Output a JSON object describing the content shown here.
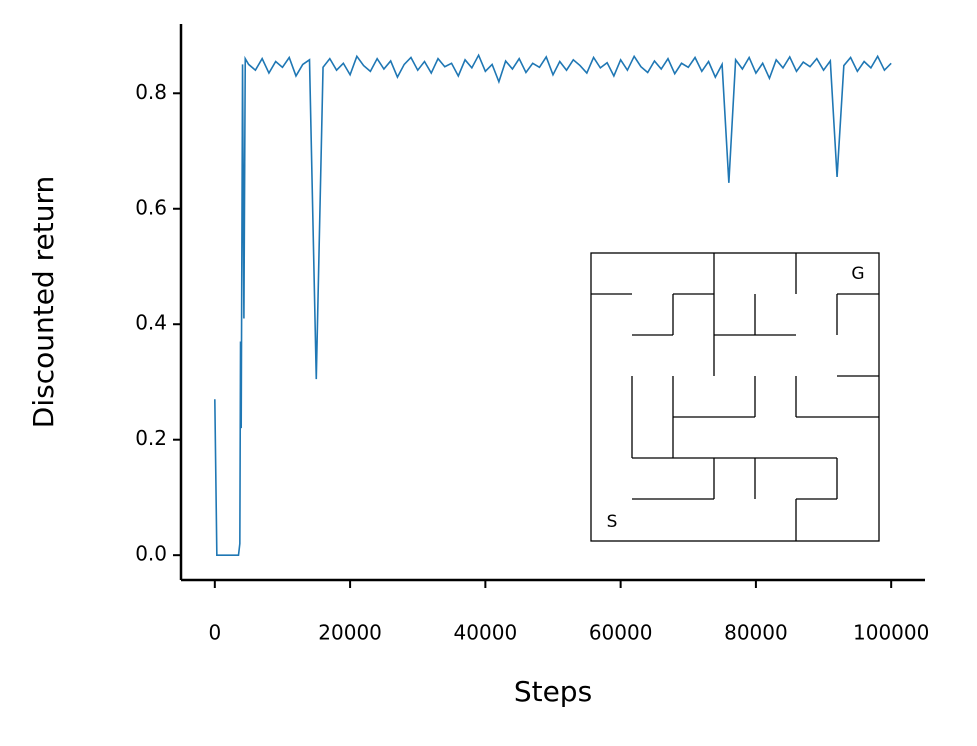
{
  "chart_data": {
    "type": "line",
    "xlabel": "Steps",
    "ylabel": "Discounted return",
    "color": "#1f77b4",
    "xlim": [
      -5000,
      105000
    ],
    "ylim": [
      -0.043,
      0.92
    ],
    "xticks": [
      0,
      20000,
      40000,
      60000,
      80000,
      100000
    ],
    "yticks": [
      {
        "value": 0,
        "label": "0.0"
      },
      0.2,
      0.4,
      0.6,
      0.8
    ],
    "inset_labels": {
      "start": "S",
      "goal": "G"
    },
    "x": [
      0,
      300,
      3500,
      3700,
      3800,
      3900,
      4100,
      4300,
      4500,
      5000,
      6000,
      7000,
      8000,
      9000,
      10000,
      11000,
      12000,
      13000,
      14000,
      15000,
      16000,
      17000,
      18000,
      19000,
      20000,
      21000,
      22000,
      23000,
      24000,
      25000,
      26000,
      27000,
      28000,
      29000,
      30000,
      31000,
      32000,
      33000,
      34000,
      35000,
      36000,
      37000,
      38000,
      39000,
      40000,
      41000,
      42000,
      43000,
      44000,
      45000,
      46000,
      47000,
      48000,
      49000,
      50000,
      51000,
      52000,
      53000,
      54000,
      55000,
      56000,
      57000,
      58000,
      59000,
      60000,
      61000,
      62000,
      63000,
      64000,
      65000,
      66000,
      67000,
      68000,
      69000,
      70000,
      71000,
      72000,
      73000,
      74000,
      75000,
      76000,
      77000,
      78000,
      79000,
      80000,
      81000,
      82000,
      83000,
      84000,
      85000,
      86000,
      87000,
      88000,
      89000,
      90000,
      91000,
      92000,
      93000,
      94000,
      95000,
      96000,
      97000,
      98000,
      99000,
      100000
    ],
    "values": [
      0.27,
      0,
      0,
      0.02,
      0.37,
      0.22,
      0.85,
      0.41,
      0.86,
      0.85,
      0.84,
      0.86,
      0.835,
      0.855,
      0.845,
      0.862,
      0.83,
      0.85,
      0.858,
      0.305,
      0.845,
      0.86,
      0.84,
      0.852,
      0.832,
      0.864,
      0.848,
      0.838,
      0.86,
      0.842,
      0.856,
      0.828,
      0.85,
      0.862,
      0.84,
      0.855,
      0.835,
      0.86,
      0.846,
      0.852,
      0.83,
      0.858,
      0.844,
      0.866,
      0.838,
      0.85,
      0.82,
      0.856,
      0.842,
      0.86,
      0.836,
      0.852,
      0.845,
      0.863,
      0.832,
      0.855,
      0.84,
      0.858,
      0.848,
      0.835,
      0.862,
      0.844,
      0.853,
      0.83,
      0.858,
      0.84,
      0.864,
      0.846,
      0.836,
      0.856,
      0.842,
      0.86,
      0.834,
      0.852,
      0.845,
      0.862,
      0.838,
      0.855,
      0.828,
      0.85,
      0.645,
      0.858,
      0.842,
      0.862,
      0.835,
      0.852,
      0.826,
      0.858,
      0.844,
      0.863,
      0.838,
      0.854,
      0.846,
      0.86,
      0.84,
      0.856,
      0.655,
      0.848,
      0.862,
      0.838,
      0.855,
      0.844,
      0.864,
      0.84,
      0.852
    ]
  }
}
